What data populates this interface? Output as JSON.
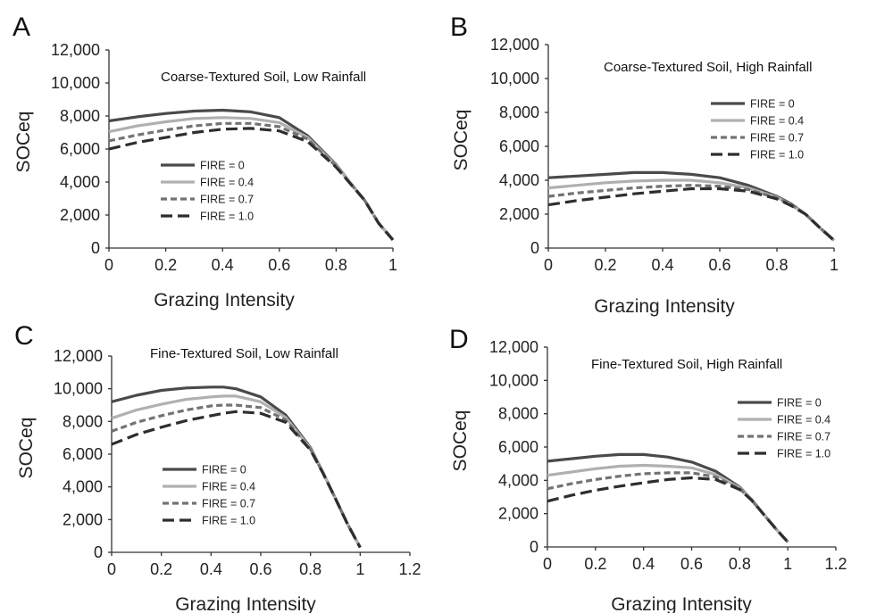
{
  "chart_data": [
    {
      "panel": "A",
      "type": "line",
      "title": "Coarse-Textured Soil, Low Rainfall",
      "xlabel": "Grazing Intensity",
      "ylabel": "SOCeq",
      "xlim": [
        0,
        1
      ],
      "ylim": [
        0,
        12000
      ],
      "xticks": [
        "0",
        "0.2",
        "0.4",
        "0.6",
        "0.8",
        "1"
      ],
      "yticks": [
        "0",
        "2,000",
        "4,000",
        "6,000",
        "8,000",
        "10,000",
        "12,000"
      ],
      "legend_position": "lower-left",
      "x": [
        0,
        0.1,
        0.2,
        0.3,
        0.4,
        0.5,
        0.6,
        0.7,
        0.8,
        0.85,
        0.9,
        0.95,
        1.0
      ],
      "series": [
        {
          "name": "FIRE = 0",
          "color": "#4a4a4a",
          "dash": "solid",
          "values": [
            7700,
            7950,
            8150,
            8300,
            8350,
            8250,
            7900,
            6800,
            5050,
            3950,
            2900,
            1500,
            500
          ]
        },
        {
          "name": "FIRE = 0.4",
          "color": "#b0b0b0",
          "dash": "solid",
          "values": [
            7050,
            7400,
            7650,
            7850,
            7900,
            7850,
            7600,
            6700,
            5000,
            3950,
            2900,
            1500,
            500
          ]
        },
        {
          "name": "FIRE = 0.7",
          "color": "#737373",
          "dash": "short",
          "values": [
            6500,
            6850,
            7150,
            7400,
            7550,
            7550,
            7350,
            6600,
            4950,
            3900,
            2900,
            1500,
            500
          ]
        },
        {
          "name": "FIRE = 1.0",
          "color": "#2e2e2e",
          "dash": "long",
          "values": [
            6000,
            6400,
            6700,
            7000,
            7200,
            7250,
            7100,
            6450,
            4900,
            3900,
            2900,
            1500,
            500
          ]
        }
      ]
    },
    {
      "panel": "B",
      "type": "line",
      "title": "Coarse-Textured Soil, High Rainfall",
      "xlabel": "Grazing Intensity",
      "ylabel": "SOCeq",
      "xlim": [
        0,
        1
      ],
      "ylim": [
        0,
        12000
      ],
      "xticks": [
        "0",
        "0.2",
        "0.4",
        "0.6",
        "0.8",
        "1"
      ],
      "yticks": [
        "0",
        "2,000",
        "4,000",
        "6,000",
        "8,000",
        "10,000",
        "12,000"
      ],
      "legend_position": "top-right",
      "x": [
        0,
        0.1,
        0.2,
        0.3,
        0.4,
        0.5,
        0.6,
        0.7,
        0.8,
        0.85,
        0.9,
        0.95,
        1.0
      ],
      "series": [
        {
          "name": "FIRE = 0",
          "color": "#4a4a4a",
          "dash": "solid",
          "values": [
            4150,
            4250,
            4350,
            4450,
            4450,
            4350,
            4150,
            3700,
            3050,
            2600,
            2000,
            1200,
            450
          ]
        },
        {
          "name": "FIRE = 0.4",
          "color": "#b0b0b0",
          "dash": "solid",
          "values": [
            3550,
            3700,
            3850,
            3950,
            4000,
            4000,
            3850,
            3550,
            3000,
            2550,
            2000,
            1200,
            450
          ]
        },
        {
          "name": "FIRE = 0.7",
          "color": "#737373",
          "dash": "short",
          "values": [
            3050,
            3250,
            3400,
            3550,
            3650,
            3700,
            3650,
            3450,
            2950,
            2550,
            2000,
            1200,
            450
          ]
        },
        {
          "name": "FIRE = 1.0",
          "color": "#2e2e2e",
          "dash": "long",
          "values": [
            2550,
            2800,
            3000,
            3200,
            3350,
            3500,
            3500,
            3350,
            2900,
            2500,
            2000,
            1200,
            450
          ]
        }
      ]
    },
    {
      "panel": "C",
      "type": "line",
      "title": "Fine-Textured Soil, Low Rainfall",
      "xlabel": "Grazing Intensity",
      "ylabel": "SOCeq",
      "xlim": [
        0,
        1.2
      ],
      "ylim": [
        0,
        12000
      ],
      "xticks": [
        "0",
        "0.2",
        "0.4",
        "0.6",
        "0.8",
        "1",
        "1.2"
      ],
      "yticks": [
        "0",
        "2,000",
        "4,000",
        "6,000",
        "8,000",
        "10,000",
        "12,000"
      ],
      "legend_position": "lower-left",
      "x": [
        0,
        0.1,
        0.2,
        0.3,
        0.4,
        0.45,
        0.5,
        0.6,
        0.7,
        0.8,
        0.85,
        0.9,
        0.95,
        1.0
      ],
      "series": [
        {
          "name": "FIRE = 0",
          "color": "#4a4a4a",
          "dash": "solid",
          "values": [
            9200,
            9600,
            9900,
            10050,
            10100,
            10100,
            10000,
            9500,
            8400,
            6400,
            4900,
            3300,
            1700,
            300
          ]
        },
        {
          "name": "FIRE = 0.4",
          "color": "#b0b0b0",
          "dash": "solid",
          "values": [
            8200,
            8700,
            9050,
            9350,
            9500,
            9550,
            9550,
            9200,
            8250,
            6350,
            4900,
            3300,
            1700,
            300
          ]
        },
        {
          "name": "FIRE = 0.7",
          "color": "#737373",
          "dash": "short",
          "values": [
            7400,
            7950,
            8350,
            8700,
            8950,
            9000,
            9000,
            8850,
            8100,
            6300,
            4850,
            3300,
            1700,
            300
          ]
        },
        {
          "name": "FIRE = 1.0",
          "color": "#2e2e2e",
          "dash": "long",
          "values": [
            6600,
            7200,
            7650,
            8050,
            8350,
            8500,
            8600,
            8500,
            7950,
            6250,
            4850,
            3300,
            1700,
            300
          ]
        }
      ]
    },
    {
      "panel": "D",
      "type": "line",
      "title": "Fine-Textured Soil, High Rainfall",
      "xlabel": "Grazing Intensity",
      "ylabel": "SOCeq",
      "xlim": [
        0,
        1.2
      ],
      "ylim": [
        0,
        12000
      ],
      "xticks": [
        "0",
        "0.2",
        "0.4",
        "0.6",
        "0.8",
        "1",
        "1.2"
      ],
      "yticks": [
        "0",
        "2,000",
        "4,000",
        "6,000",
        "8,000",
        "10,000",
        "12,000"
      ],
      "legend_position": "top-right",
      "x": [
        0,
        0.1,
        0.2,
        0.3,
        0.4,
        0.5,
        0.6,
        0.7,
        0.8,
        0.85,
        0.9,
        0.95,
        1.0
      ],
      "series": [
        {
          "name": "FIRE = 0",
          "color": "#4a4a4a",
          "dash": "solid",
          "values": [
            5150,
            5300,
            5450,
            5550,
            5550,
            5400,
            5100,
            4550,
            3600,
            2850,
            1950,
            1100,
            300
          ]
        },
        {
          "name": "FIRE = 0.4",
          "color": "#b0b0b0",
          "dash": "solid",
          "values": [
            4300,
            4500,
            4700,
            4850,
            4900,
            4850,
            4750,
            4350,
            3550,
            2850,
            1950,
            1100,
            300
          ]
        },
        {
          "name": "FIRE = 0.7",
          "color": "#737373",
          "dash": "short",
          "values": [
            3500,
            3800,
            4050,
            4250,
            4400,
            4450,
            4450,
            4200,
            3500,
            2800,
            1950,
            1100,
            300
          ]
        },
        {
          "name": "FIRE = 1.0",
          "color": "#2e2e2e",
          "dash": "long",
          "values": [
            2750,
            3100,
            3400,
            3650,
            3850,
            4050,
            4150,
            4050,
            3450,
            2800,
            1950,
            1100,
            300
          ]
        }
      ]
    }
  ]
}
